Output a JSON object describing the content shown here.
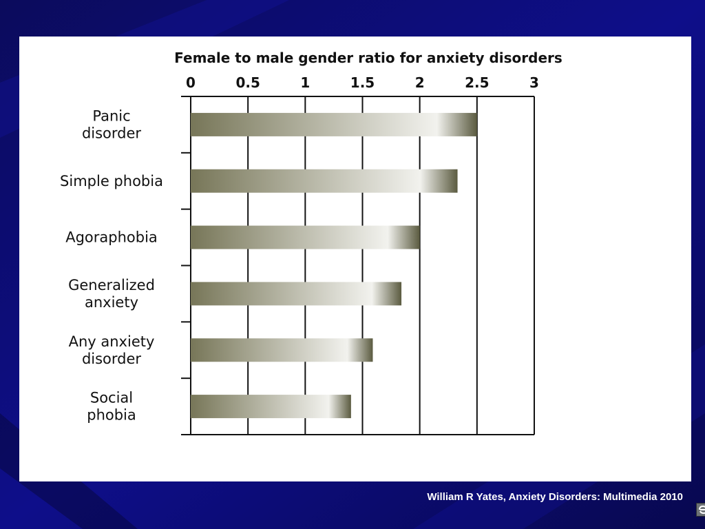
{
  "slide": {
    "background_color": "#0a0a6e",
    "footer_text": "William R Yates, Anxiety Disorders: Multimedia 2010",
    "corner_icon": "publisher-logo-icon"
  },
  "chart_data": {
    "type": "bar",
    "orientation": "horizontal",
    "title": "Female to male gender ratio for anxiety disorders",
    "xlabel": "",
    "ylabel": "",
    "xlim": [
      0,
      3
    ],
    "x_ticks": [
      "0",
      "0.5",
      "1",
      "1.5",
      "2",
      "2.5",
      "3"
    ],
    "x_tick_values": [
      0,
      0.5,
      1,
      1.5,
      2,
      2.5,
      3
    ],
    "axis_position": "top",
    "grid": true,
    "legend": "none",
    "categories": [
      [
        "Panic",
        "disorder"
      ],
      [
        "Simple phobia"
      ],
      [
        "Agoraphobia"
      ],
      [
        "Generalized",
        "anxiety"
      ],
      [
        "Any anxiety",
        "disorder"
      ],
      [
        "Social",
        "phobia"
      ]
    ],
    "values": [
      2.5,
      2.33,
      2.0,
      1.84,
      1.59,
      1.4
    ],
    "bar_gradient": [
      "#777658",
      "#f2f2ee",
      "#5b5b40"
    ]
  }
}
